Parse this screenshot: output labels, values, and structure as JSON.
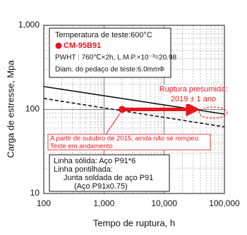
{
  "chart_data": {
    "type": "line",
    "x_label": "Tempo de ruptura, h",
    "y_label": "Carga de estresse, Mpa",
    "xlog": true,
    "ylog": true,
    "grid": true,
    "xlim": [
      100,
      100000
    ],
    "ylim": [
      10,
      1000
    ],
    "xticks": [
      100,
      {
        "value": 1000,
        "label": "1,000"
      },
      {
        "value": 10000,
        "label": "10,000"
      },
      {
        "value": 100000,
        "label": "100,000"
      }
    ],
    "yticks": [
      10,
      100,
      {
        "value": 1000,
        "label": "1,000"
      }
    ],
    "series": [
      {
        "color": "#111111",
        "dashed": false,
        "x": [
          100,
          100000
        ],
        "values": [
          187,
          88
        ]
      },
      {
        "color": "#111111",
        "dashed": true,
        "x": [
          100,
          100000
        ],
        "values": [
          135,
          62
        ]
      },
      {
        "color": "#e8141b",
        "dashed": false,
        "x": [
          2000,
          30000
        ],
        "values": [
          100,
          100
        ]
      }
    ],
    "info_box": [
      "Temperatura de teste:600°C",
      "CM-95B91",
      "PWHT : 760℃×2h, L.M.P.×10⁻³=20.98",
      "Diam. do pedaço de teste:6.0mmΦ"
    ],
    "rupture_note": [
      "Ruptura presumida:",
      "2019 ± 1 ano"
    ],
    "status_note": [
      "A partir de outubro de 2015, ainda não se rompeu:",
      "Teste em andamento"
    ],
    "legend_box": [
      "Linha sólida: Aço P91*6",
      "Linha pontilhada:",
      "Junta soldada de aço P91",
      "(Aço P91x0.75)"
    ]
  }
}
